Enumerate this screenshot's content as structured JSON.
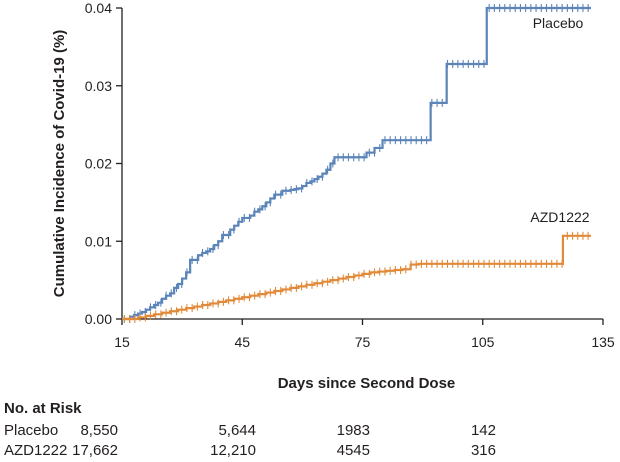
{
  "chart_data": {
    "type": "line",
    "title": "",
    "xlabel": "Days since Second Dose",
    "ylabel": "Cumulative Incidence of Covid-19 (%)",
    "xlim": [
      15,
      135
    ],
    "ylim": [
      0,
      0.04
    ],
    "xticks": [
      15,
      45,
      75,
      105,
      135
    ],
    "yticks": [
      0.0,
      0.01,
      0.02,
      0.03,
      0.04
    ],
    "ytick_labels": [
      "0.00",
      "0.01",
      "0.02",
      "0.03",
      "0.04"
    ],
    "grid": false,
    "colors": {
      "Placebo": "#5b84b8",
      "AZD1222": "#e18a3a",
      "axis": "#231f20"
    },
    "series": [
      {
        "name": "Placebo",
        "step": true,
        "x": [
          15,
          17,
          18,
          19,
          20,
          21,
          22,
          23,
          24,
          25,
          26,
          27,
          28,
          29,
          30,
          31,
          32,
          34,
          35,
          36,
          37,
          38,
          39,
          40,
          42,
          43,
          44,
          45,
          47,
          48,
          49,
          50,
          51,
          52,
          53,
          55,
          57,
          58,
          59,
          60,
          61,
          62,
          63,
          64,
          65,
          66,
          67,
          68,
          69,
          70,
          72,
          74,
          76,
          78,
          80,
          82,
          84,
          86,
          88,
          90,
          92,
          94,
          96,
          98,
          99,
          100,
          102,
          104,
          106,
          107,
          108,
          110,
          112,
          115,
          118,
          122,
          126,
          130,
          132
        ],
        "y": [
          0.0,
          0.0003,
          0.0005,
          0.0007,
          0.0009,
          0.0012,
          0.0015,
          0.0018,
          0.0021,
          0.0026,
          0.003,
          0.0033,
          0.004,
          0.0045,
          0.0052,
          0.006,
          0.0076,
          0.0082,
          0.0085,
          0.0087,
          0.009,
          0.0095,
          0.01,
          0.0108,
          0.0115,
          0.012,
          0.0125,
          0.013,
          0.0133,
          0.0138,
          0.0141,
          0.0145,
          0.015,
          0.0155,
          0.016,
          0.0165,
          0.0166,
          0.0167,
          0.0168,
          0.0171,
          0.0175,
          0.0177,
          0.018,
          0.0183,
          0.0187,
          0.0192,
          0.02,
          0.0208,
          0.0208,
          0.0208,
          0.0208,
          0.0208,
          0.0214,
          0.022,
          0.023,
          0.023,
          0.023,
          0.023,
          0.023,
          0.023,
          0.0278,
          0.0278,
          0.0328,
          0.0328,
          0.0328,
          0.0328,
          0.0328,
          0.0328,
          0.04,
          0.04,
          0.04,
          0.04,
          0.04,
          0.04,
          0.04,
          0.04,
          0.04,
          0.04,
          0.04
        ]
      },
      {
        "name": "AZD1222",
        "step": true,
        "x": [
          15,
          17,
          19,
          21,
          23,
          25,
          27,
          29,
          31,
          33,
          35,
          37,
          39,
          41,
          43,
          45,
          47,
          49,
          51,
          53,
          55,
          57,
          59,
          61,
          63,
          65,
          67,
          69,
          71,
          73,
          75,
          77,
          79,
          81,
          83,
          85,
          87,
          89,
          91,
          93,
          95,
          97,
          99,
          101,
          103,
          105,
          107,
          109,
          111,
          113,
          115,
          117,
          119,
          121,
          123,
          125,
          127,
          129,
          131,
          132
        ],
        "y": [
          0.0,
          0.0,
          0.0002,
          0.0004,
          0.0006,
          0.0008,
          0.001,
          0.0012,
          0.0014,
          0.0016,
          0.0018,
          0.002,
          0.0022,
          0.0024,
          0.0026,
          0.0028,
          0.003,
          0.0032,
          0.0034,
          0.0036,
          0.0038,
          0.004,
          0.0042,
          0.0044,
          0.0046,
          0.0048,
          0.005,
          0.0052,
          0.0054,
          0.0056,
          0.0058,
          0.006,
          0.0061,
          0.0062,
          0.0063,
          0.0064,
          0.007,
          0.0071,
          0.0071,
          0.0071,
          0.0071,
          0.0071,
          0.0071,
          0.0071,
          0.0071,
          0.0071,
          0.0071,
          0.0071,
          0.0071,
          0.0071,
          0.0071,
          0.0071,
          0.0071,
          0.0071,
          0.0071,
          0.0107,
          0.0107,
          0.0107,
          0.0107,
          0.0107
        ]
      }
    ],
    "series_labels": [
      "Placebo",
      "AZD1222"
    ],
    "risk_table": {
      "title": "No. at Risk",
      "columns_at_x": [
        15,
        45,
        75,
        105
      ],
      "rows": [
        {
          "label": "Placebo",
          "values": [
            "8,550",
            "5,644",
            "1983",
            "142"
          ]
        },
        {
          "label": "AZD1222",
          "values": [
            "17,662",
            "12,210",
            "4545",
            "316"
          ]
        }
      ]
    }
  }
}
